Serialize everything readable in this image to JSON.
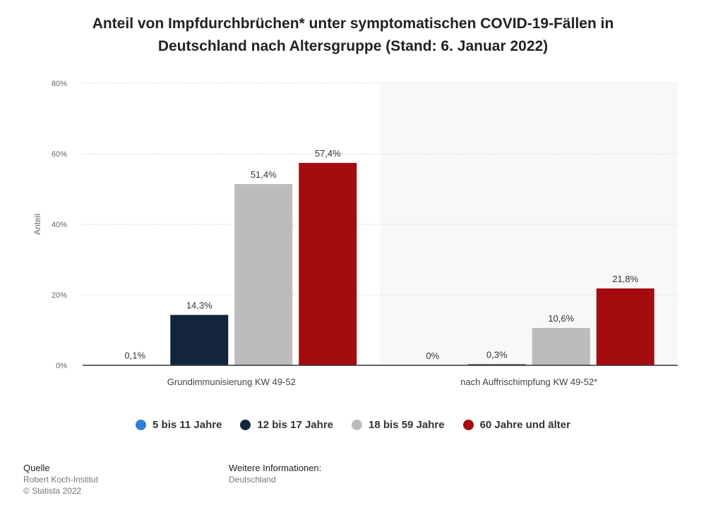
{
  "title_lines": [
    "Anteil von Impfdurchbrüchen* unter symptomatischen COVID-19-Fällen in",
    "Deutschland nach Altersgruppe (Stand: 6. Januar 2022)"
  ],
  "chart_data": {
    "type": "bar",
    "categories": [
      "Grundimmunisierung KW 49-52",
      "nach Auffrischimpfung KW 49-52*"
    ],
    "series": [
      {
        "name": "5 bis 11 Jahre",
        "color": "#2f7ed8",
        "values": [
          0.1,
          0
        ],
        "labels": [
          "0,1%",
          "0%"
        ]
      },
      {
        "name": "12 bis 17 Jahre",
        "color": "#13263e",
        "values": [
          14.3,
          0.3
        ],
        "labels": [
          "14,3%",
          "0,3%"
        ]
      },
      {
        "name": "18 bis 59 Jahre",
        "color": "#bcbcbc",
        "values": [
          51.4,
          10.6
        ],
        "labels": [
          "51,4%",
          "10,6%"
        ]
      },
      {
        "name": "60 Jahre und älter",
        "color": "#a50c0f",
        "values": [
          57.4,
          21.8
        ],
        "labels": [
          "57,4%",
          "21,8%"
        ]
      }
    ],
    "ylabel": "Anteil",
    "xlabel": "",
    "ylim": [
      0,
      80
    ],
    "yticks": [
      0,
      20,
      40,
      60,
      80
    ],
    "ytick_labels": [
      "0%",
      "20%",
      "40%",
      "60%",
      "80%"
    ],
    "grid": true,
    "legend_position": "bottom"
  },
  "footer": {
    "source_heading": "Quelle",
    "source_lines": [
      "Robert Koch-Institut",
      "© Statista 2022"
    ],
    "info_heading": "Weitere Informationen:",
    "info_lines": [
      "Deutschland"
    ]
  }
}
